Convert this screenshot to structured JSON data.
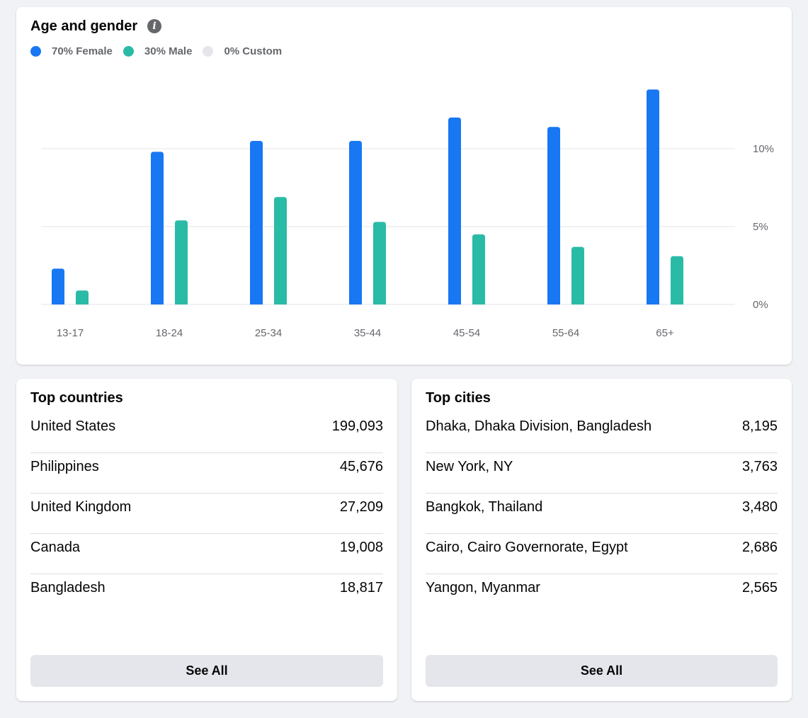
{
  "age_gender": {
    "title": "Age and gender",
    "legend": [
      {
        "label": "70% Female",
        "color": "#1877f2"
      },
      {
        "label": "30% Male",
        "color": "#2abba7"
      },
      {
        "label": "0% Custom",
        "color": "#e4e6eb"
      }
    ]
  },
  "chart_data": {
    "type": "bar",
    "categories": [
      "13-17",
      "18-24",
      "25-34",
      "35-44",
      "45-54",
      "55-64",
      "65+"
    ],
    "series": [
      {
        "name": "Female",
        "color": "#1877f2",
        "values": [
          2.3,
          9.8,
          10.5,
          10.5,
          12.0,
          11.4,
          13.8
        ]
      },
      {
        "name": "Male",
        "color": "#2abba7",
        "values": [
          0.9,
          5.4,
          6.9,
          5.3,
          4.5,
          3.7,
          3.1
        ]
      }
    ],
    "yticks": [
      "0%",
      "5%",
      "10%"
    ],
    "ytick_values": [
      0,
      5,
      10
    ],
    "ylim": [
      0,
      14
    ],
    "grid": true
  },
  "countries": {
    "title": "Top countries",
    "rows": [
      {
        "name": "United States",
        "value": "199,093"
      },
      {
        "name": "Philippines",
        "value": "45,676"
      },
      {
        "name": "United Kingdom",
        "value": "27,209"
      },
      {
        "name": "Canada",
        "value": "19,008"
      },
      {
        "name": "Bangladesh",
        "value": "18,817"
      }
    ],
    "button": "See All"
  },
  "cities": {
    "title": "Top cities",
    "rows": [
      {
        "name": "Dhaka, Dhaka Division, Bangladesh",
        "value": "8,195"
      },
      {
        "name": "New York, NY",
        "value": "3,763"
      },
      {
        "name": "Bangkok, Thailand",
        "value": "3,480"
      },
      {
        "name": "Cairo, Cairo Governorate, Egypt",
        "value": "2,686"
      },
      {
        "name": "Yangon, Myanmar",
        "value": "2,565"
      }
    ],
    "button": "See All"
  }
}
